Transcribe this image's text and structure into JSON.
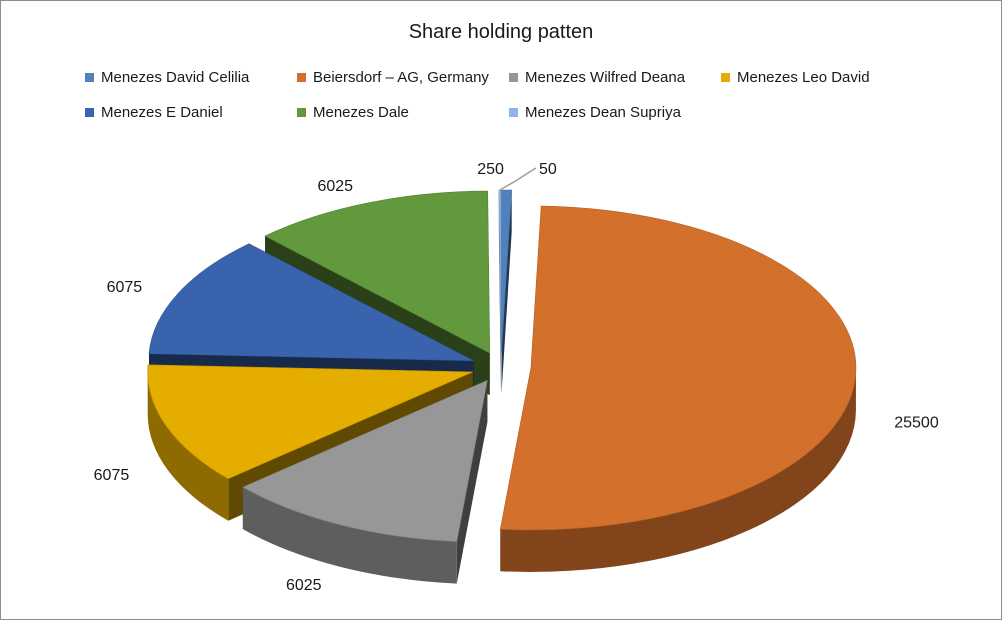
{
  "chart_data": {
    "type": "pie",
    "title": "Share holding patten",
    "legend_position": "top",
    "three_d": true,
    "exploded": true,
    "slices": [
      {
        "name": "Menezes David Celilia",
        "value": 250,
        "color": "#4f81bd"
      },
      {
        "name": "Beiersdorf – AG, Germany",
        "value": 25500,
        "color": "#d2702c"
      },
      {
        "name": "Menezes Wilfred Deana",
        "value": 6025,
        "color": "#979797"
      },
      {
        "name": "Menezes Leo David",
        "value": 6075,
        "color": "#e5ad00"
      },
      {
        "name": "Menezes E Daniel",
        "value": 6075,
        "color": "#3a63ad"
      },
      {
        "name": "Menezes Dale",
        "value": 6025,
        "color": "#62993c"
      },
      {
        "name": "Menezes Dean Supriya",
        "value": 50,
        "color": "#8db4e2"
      }
    ]
  }
}
